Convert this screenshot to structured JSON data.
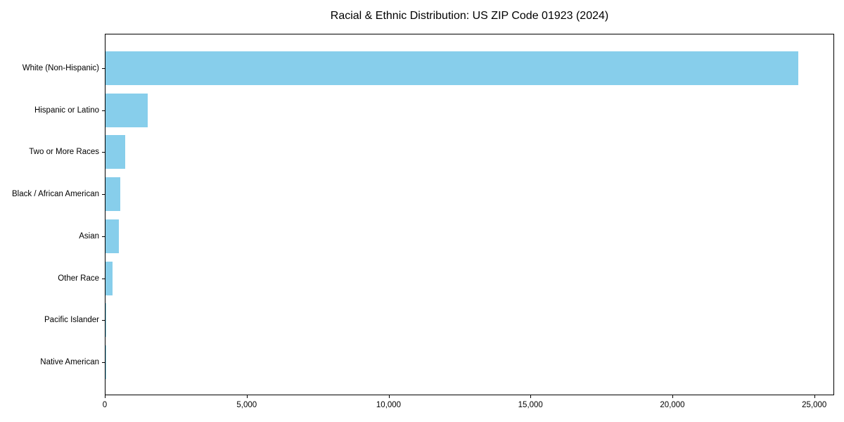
{
  "chart_data": {
    "type": "bar",
    "orientation": "horizontal",
    "title": "Racial & Ethnic Distribution: US ZIP Code 01923 (2024)",
    "categories": [
      "White (Non-Hispanic)",
      "Hispanic or Latino",
      "Two or More Races",
      "Black / African American",
      "Asian",
      "Other Race",
      "Pacific Islander",
      "Native American"
    ],
    "values": [
      24450,
      1500,
      690,
      520,
      470,
      250,
      25,
      6
    ],
    "xlabel": "",
    "ylabel": "",
    "xlim": [
      0,
      25700
    ],
    "xticks": [
      {
        "value": 0,
        "label": "0"
      },
      {
        "value": 5000,
        "label": "5,000"
      },
      {
        "value": 10000,
        "label": "10,000"
      },
      {
        "value": 15000,
        "label": "15,000"
      },
      {
        "value": 20000,
        "label": "20,000"
      },
      {
        "value": 25000,
        "label": "25,000"
      }
    ],
    "bar_color": "#87CEEB",
    "axis_color": "#000000",
    "text_color": "#000000",
    "grid": false,
    "legend": "none"
  }
}
